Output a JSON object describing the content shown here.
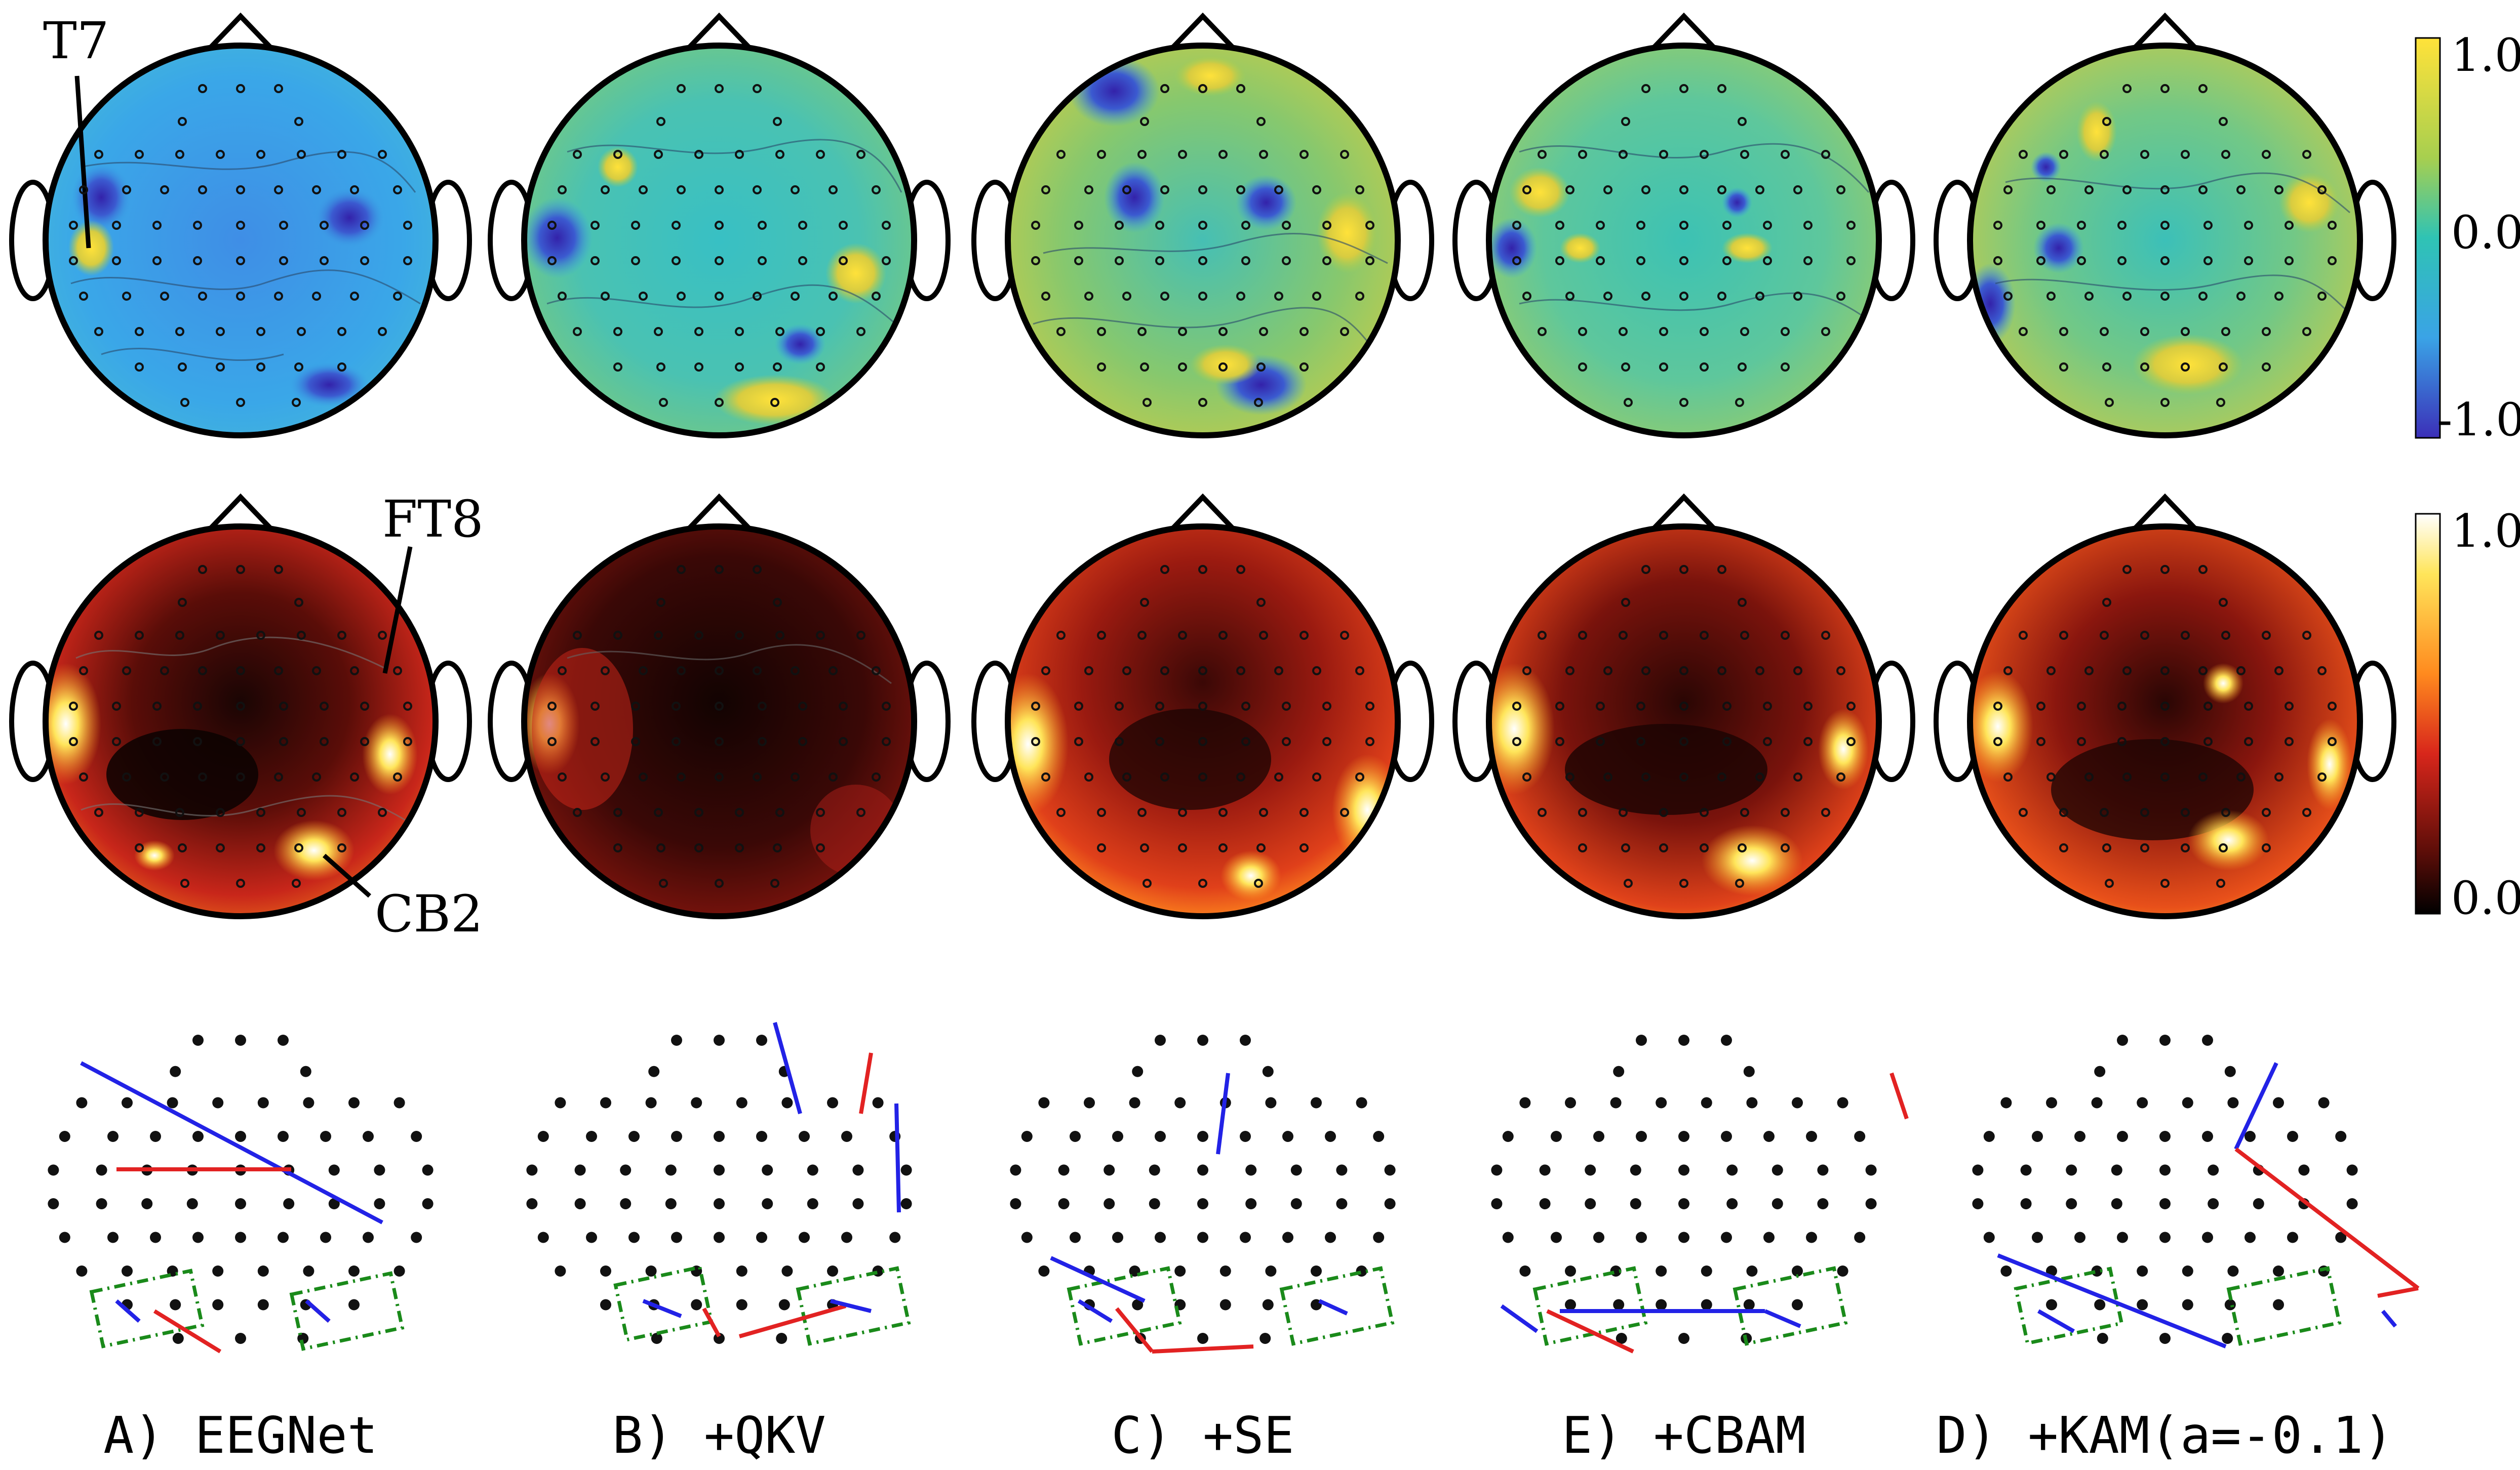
{
  "panels": [
    {
      "label": "A) EEGNet"
    },
    {
      "label": "B) +QKV"
    },
    {
      "label": "C) +SE"
    },
    {
      "label": "E) +CBAM"
    },
    {
      "label": "D) +KAM(a=-0.1)"
    }
  ],
  "annotations": {
    "t7": "T7",
    "ft8": "FT8",
    "cb2": "CB2"
  },
  "colorbars": {
    "top": {
      "max": "1.0",
      "mid": "0.0",
      "min": "-1.0",
      "colors": [
        "#ffe23a",
        "#a7cf4f",
        "#2fc3b4",
        "#3aa3e6",
        "#3b4bcb"
      ]
    },
    "middle": {
      "max": "1.0",
      "min": "0.0",
      "colors": [
        "#ffffff",
        "#ffe55a",
        "#ff8a1e",
        "#d8261b",
        "#6a0f0a",
        "#000000"
      ]
    }
  },
  "colors": {
    "electrode": "#111111",
    "positive_link": "#e22222",
    "negative_link": "#2222e6",
    "roi_box": "#1a8a1a"
  }
}
